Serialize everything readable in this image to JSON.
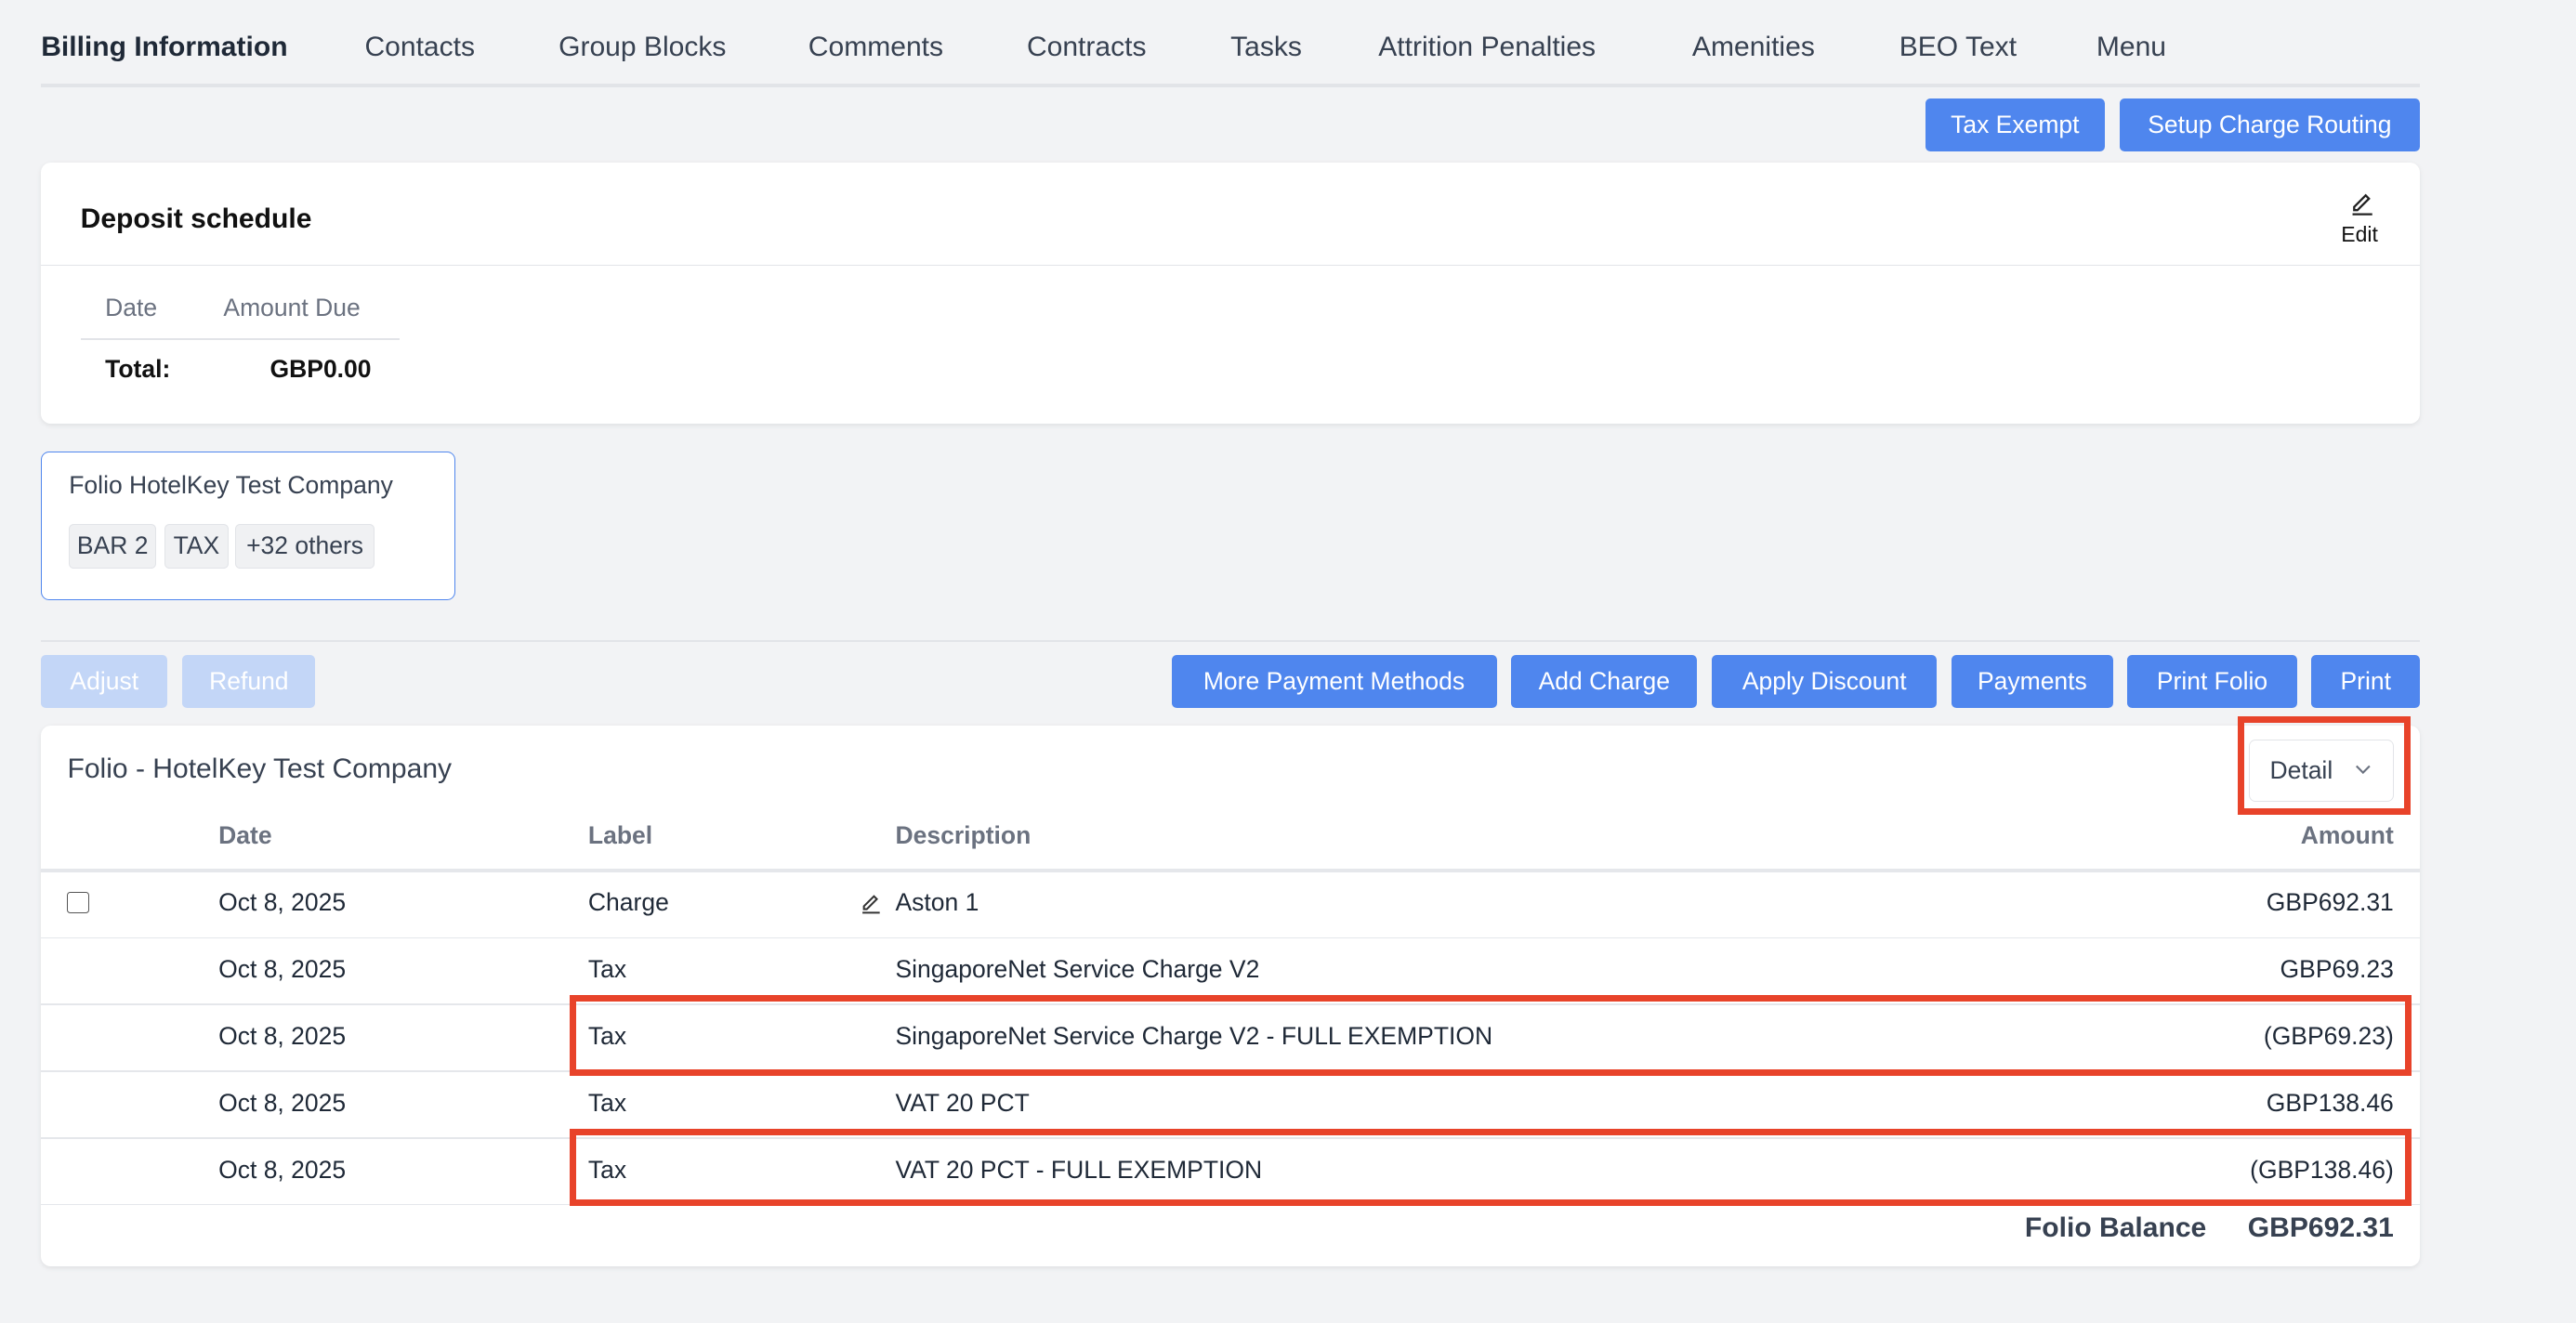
{
  "tabs": [
    "Billing Information",
    "Contacts",
    "Group Blocks",
    "Comments",
    "Contracts",
    "Tasks",
    "Attrition Penalties",
    "Amenities",
    "BEO Text",
    "Menu"
  ],
  "top_buttons": {
    "tax_exempt": "Tax Exempt",
    "setup_charge_routing": "Setup Charge Routing"
  },
  "deposit": {
    "title": "Deposit schedule",
    "edit_label": "Edit",
    "columns": {
      "date": "Date",
      "amount_due": "Amount Due"
    },
    "total_label": "Total:",
    "total_value": "GBP0.00"
  },
  "folio_card": {
    "title": "Folio HotelKey Test Company",
    "chips": [
      "BAR 2",
      "TAX",
      "+32 others"
    ]
  },
  "actions": {
    "adjust": "Adjust",
    "refund": "Refund",
    "more_payment_methods": "More Payment Methods",
    "add_charge": "Add Charge",
    "apply_discount": "Apply Discount",
    "payments": "Payments",
    "print_folio": "Print Folio",
    "print": "Print"
  },
  "folio": {
    "title": "Folio - HotelKey Test Company",
    "view_select": "Detail",
    "columns": {
      "date": "Date",
      "label": "Label",
      "description": "Description",
      "amount": "Amount"
    },
    "rows": [
      {
        "date": "Oct 8, 2025",
        "label": "Charge",
        "description": "Aston 1",
        "amount": "GBP692.31"
      },
      {
        "date": "Oct 8, 2025",
        "label": "Tax",
        "description": "SingaporeNet Service Charge V2",
        "amount": "GBP69.23"
      },
      {
        "date": "Oct 8, 2025",
        "label": "Tax",
        "description": "SingaporeNet Service Charge V2 - FULL EXEMPTION",
        "amount": "(GBP69.23)"
      },
      {
        "date": "Oct 8, 2025",
        "label": "Tax",
        "description": "VAT 20 PCT",
        "amount": "GBP138.46"
      },
      {
        "date": "Oct 8, 2025",
        "label": "Tax",
        "description": "VAT 20 PCT - FULL EXEMPTION",
        "amount": "(GBP138.46)"
      }
    ],
    "balance_label": "Folio Balance",
    "balance_value": "GBP692.31"
  },
  "colors": {
    "primary": "#4f86ee",
    "highlight": "#e8432a",
    "background": "#f2f3f5"
  }
}
